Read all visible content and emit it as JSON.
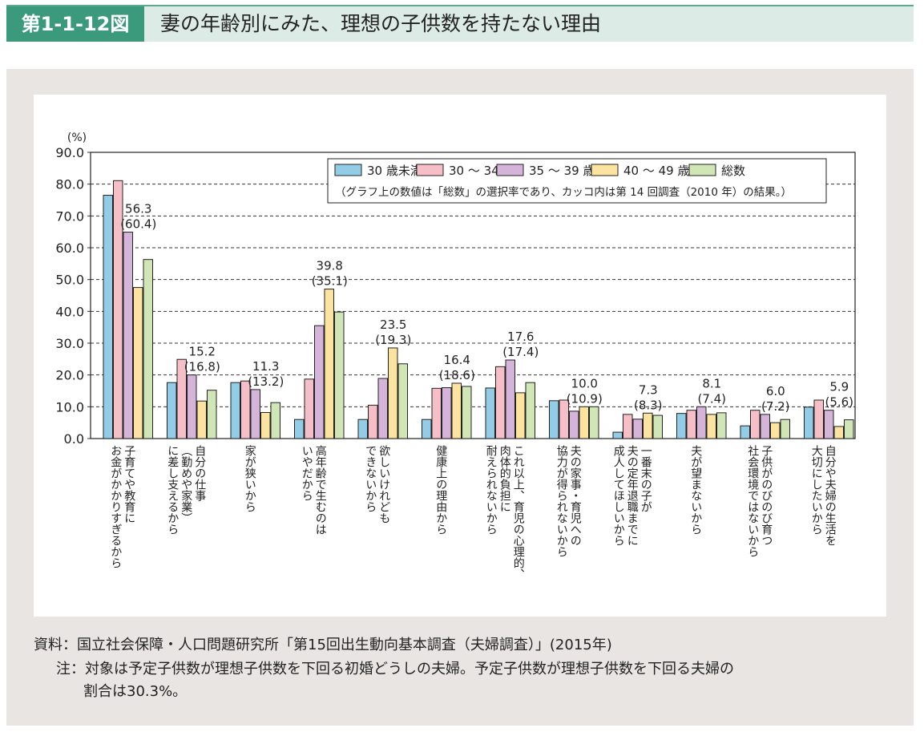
{
  "header": {
    "figure_no": "第1-1-12図",
    "title": "妻の年齢別にみた、理想の子供数を持たない理由"
  },
  "chart_data": {
    "type": "bar",
    "ylabel": "(%)",
    "ylim": [
      0,
      90
    ],
    "yticks": [
      "0.0",
      "10.0",
      "20.0",
      "30.0",
      "40.0",
      "50.0",
      "60.0",
      "70.0",
      "80.0",
      "90.0"
    ],
    "grid": true,
    "legend_position": "top-right",
    "legend_note": "（グラフ上の数値は「総数」の選択率であり、カッコ内は第 14 回調査（2010 年）の結果。）",
    "categories": [
      "子育てや教育に\nお金がかかりすぎるから",
      "自分の仕事\n（勤めや家業）\nに差し支えるから",
      "家が狭いから",
      "高年齢で生むのは\nいやだから",
      "欲しいけれども\nできないから",
      "健康上の理由から",
      "これ以上、育児の心理的、\n肉体的負担に\n耐えられないから",
      "夫の家事・育児への\n協力が得られないから",
      "一番末の子が\n夫の定年退職までに\n成人してほしいから",
      "夫が望まないから",
      "子供がのびのび育つ\n社会環境ではないから",
      "自分や夫婦の生活を\n大切にしたいから"
    ],
    "series": [
      {
        "name": "30 歳未満",
        "color": "#92cce6",
        "values": [
          76.5,
          17.6,
          17.6,
          6.0,
          6.0,
          6.0,
          15.9,
          11.9,
          2.0,
          7.9,
          4.0,
          9.9
        ]
      },
      {
        "name": "30 〜 34 歳",
        "color": "#f6bec6",
        "values": [
          81.1,
          24.9,
          18.1,
          18.7,
          10.5,
          15.8,
          22.6,
          12.1,
          7.6,
          8.9,
          8.9,
          12.1
        ]
      },
      {
        "name": "35 〜 39 歳",
        "color": "#d4b4d8",
        "values": [
          64.9,
          20.0,
          15.4,
          35.5,
          18.9,
          16.0,
          24.7,
          8.6,
          6.1,
          10.0,
          7.6,
          8.9
        ]
      },
      {
        "name": "40 〜 49 歳",
        "color": "#fde3a0",
        "values": [
          47.5,
          11.8,
          8.2,
          47.0,
          28.5,
          17.4,
          14.4,
          10.0,
          8.0,
          7.6,
          5.0,
          3.8
        ]
      },
      {
        "name": "総数",
        "color": "#d0e6b6",
        "values": [
          56.3,
          15.2,
          11.3,
          39.8,
          23.5,
          16.4,
          17.6,
          10.0,
          7.3,
          8.1,
          6.0,
          5.9
        ]
      }
    ],
    "total_labels": [
      "56.3",
      "15.2",
      "11.3",
      "39.8",
      "23.5",
      "16.4",
      "17.6",
      "10.0",
      "7.3",
      "8.1",
      "6.0",
      "5.9"
    ],
    "previous_labels": [
      "(60.4)",
      "(16.8)",
      "(13.2)",
      "(35.1)",
      "(19.3)",
      "(18.6)",
      "(17.4)",
      "(10.9)",
      "(8.3)",
      "(7.4)",
      "(7.2)",
      "(5.6)"
    ]
  },
  "notes": {
    "source": "資料：国立社会保障・人口問題研究所「第15回出生動向基本調査（夫婦調査）」(2015年)",
    "note1": "注：対象は予定子供数が理想子供数を下回る初婚どうしの夫婦。予定子供数が理想子供数を下回る夫婦の",
    "note2": "割合は30.3%。"
  }
}
